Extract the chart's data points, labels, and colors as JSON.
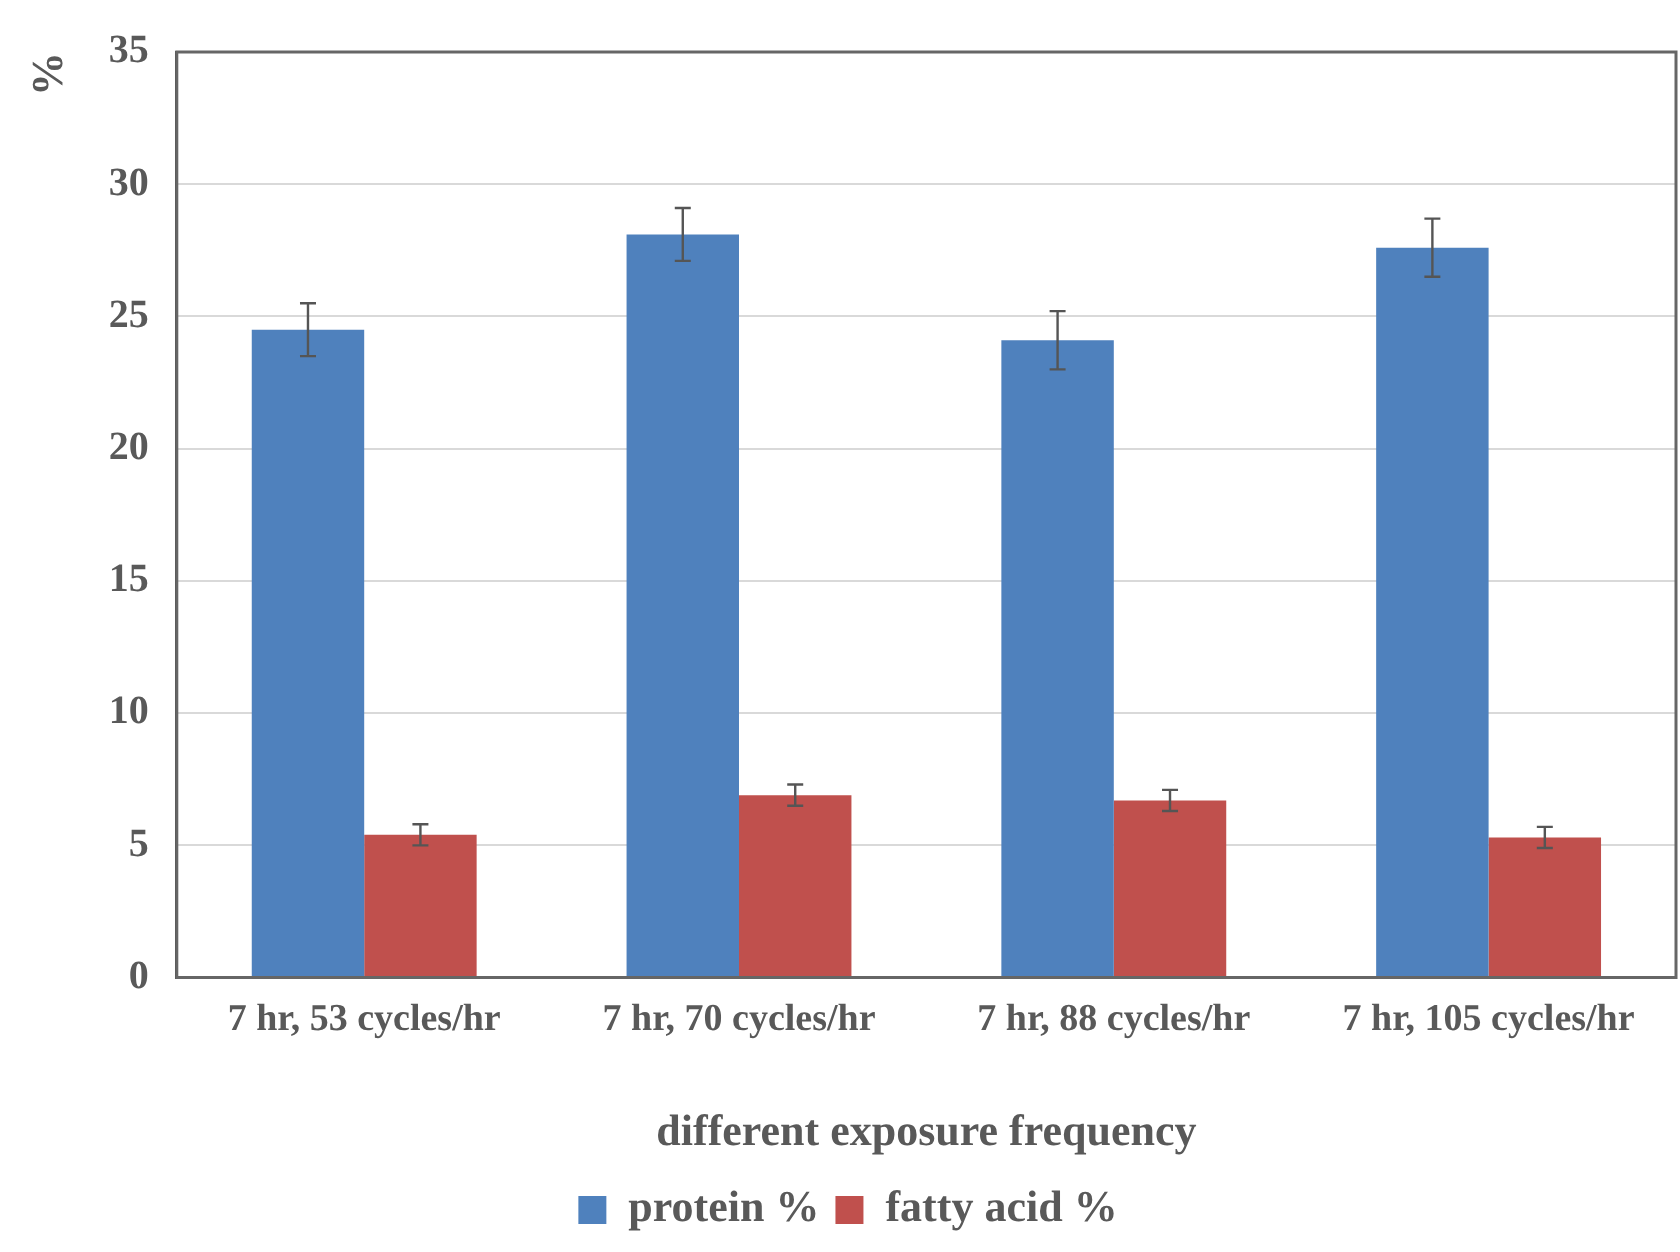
{
  "chart_data": {
    "type": "bar",
    "xlabel": "different exposure frequency",
    "ylabel": "%",
    "categories": [
      "7 hr, 53 cycles/hr",
      "7 hr, 70 cycles/hr",
      "7 hr, 88 cycles/hr",
      "7 hr, 105 cycles/hr"
    ],
    "series": [
      {
        "name": "protein %",
        "color": "#4f81bd",
        "values": [
          24.5,
          28.1,
          24.1,
          27.6
        ],
        "errors": [
          1.0,
          1.0,
          1.1,
          1.1
        ]
      },
      {
        "name": "fatty acid %",
        "color": "#c0504d",
        "values": [
          5.4,
          6.9,
          6.7,
          5.3
        ],
        "errors": [
          0.4,
          0.4,
          0.4,
          0.4
        ]
      }
    ],
    "ylim": [
      0,
      35
    ],
    "yticks": [
      0,
      5,
      10,
      15,
      20,
      25,
      30,
      35
    ],
    "grid": "y",
    "legend": "bottom"
  }
}
